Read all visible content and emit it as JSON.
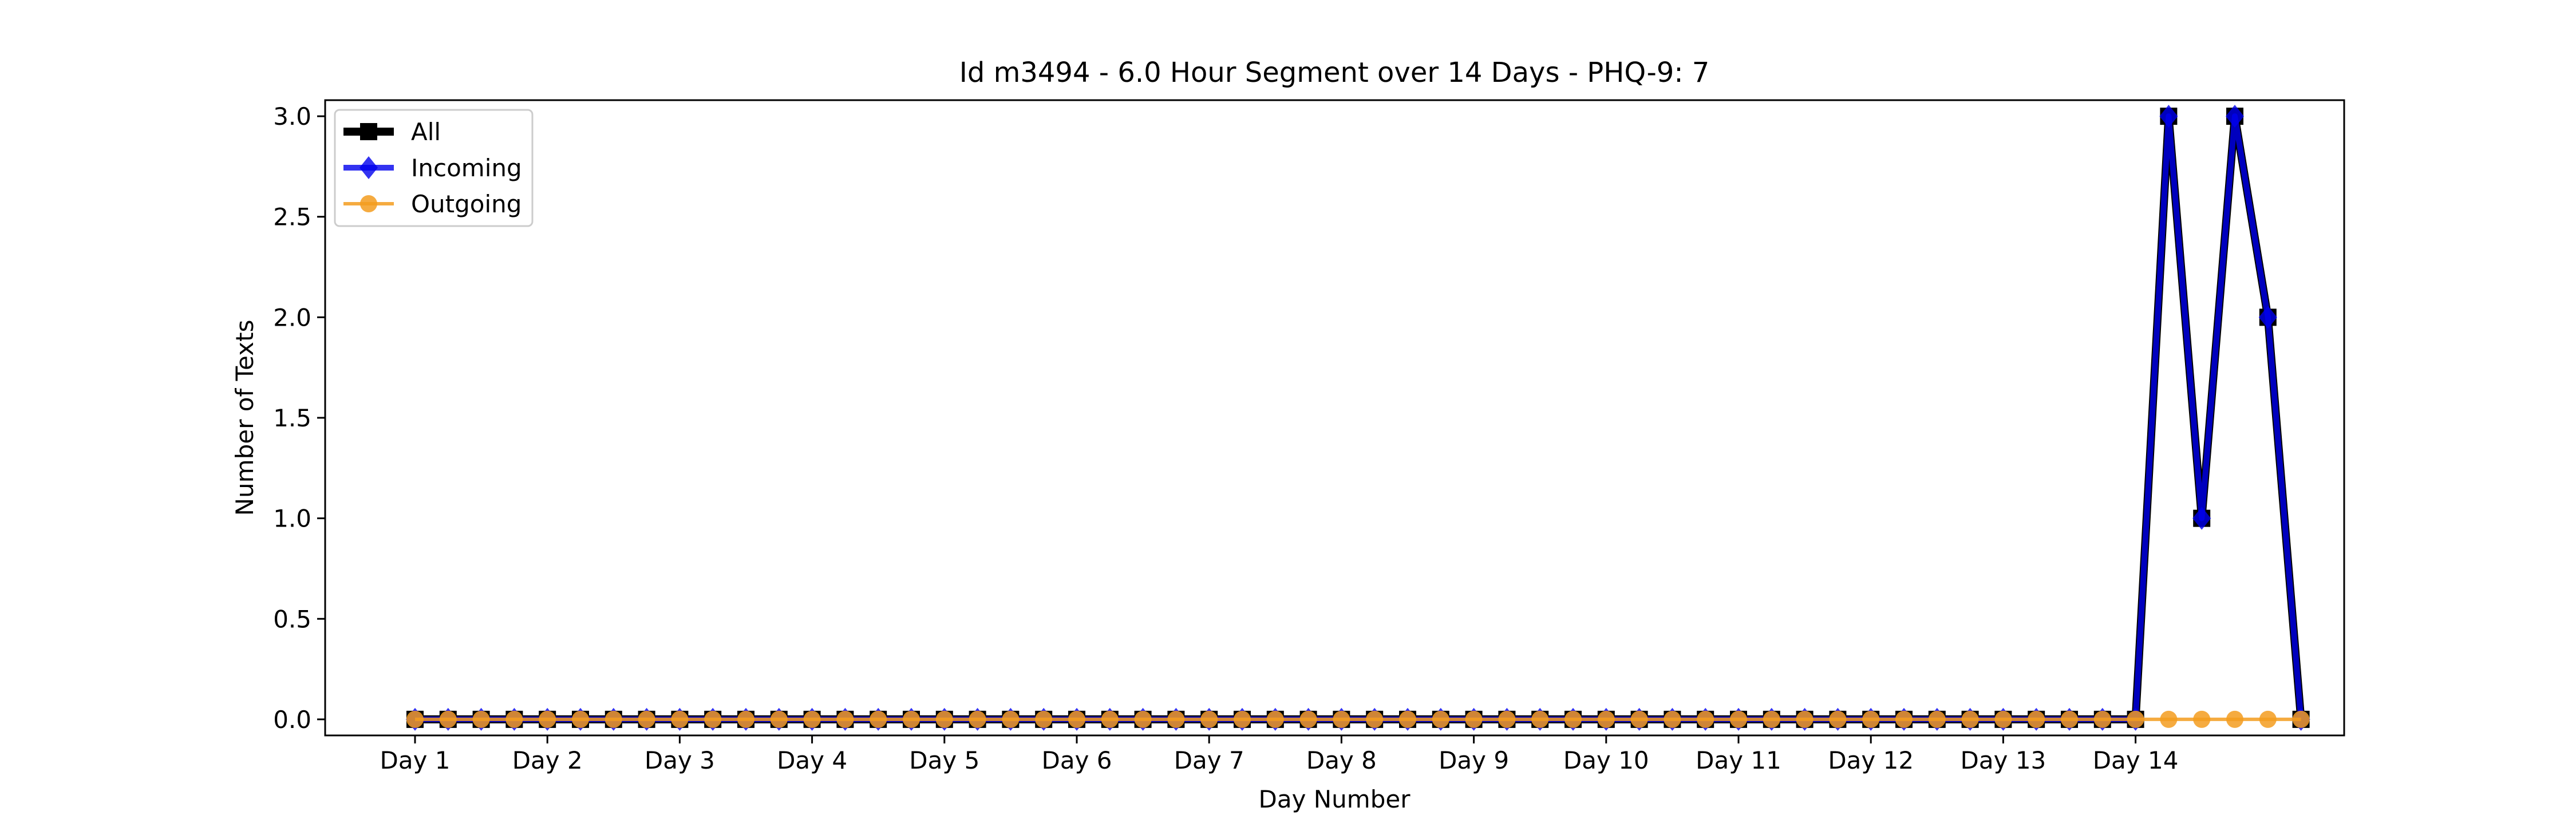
{
  "chart_data": {
    "type": "line",
    "title": "Id m3494 - 6.0 Hour Segment over 14 Days - PHQ-9: 7",
    "xlabel": "Day Number",
    "ylabel": "Number of Texts",
    "ylim": [
      -0.08,
      3.08
    ],
    "yticks": [
      0.0,
      0.5,
      1.0,
      1.5,
      2.0,
      2.5,
      3.0
    ],
    "ytick_labels": [
      "0.0",
      "0.5",
      "1.0",
      "1.5",
      "2.0",
      "2.5",
      "3.0"
    ],
    "xtick_labels": [
      "Day 1",
      "Day 2",
      "Day 3",
      "Day 4",
      "Day 5",
      "Day 6",
      "Day 7",
      "Day 8",
      "Day 9",
      "Day 10",
      "Day 11",
      "Day 12",
      "Day 13",
      "Day 14"
    ],
    "segments_per_day": 4,
    "grid": false,
    "legend_position": "top-left",
    "series": [
      {
        "name": "All",
        "color": "#000000",
        "marker": "square",
        "values": [
          0,
          0,
          0,
          0,
          0,
          0,
          0,
          0,
          0,
          0,
          0,
          0,
          0,
          0,
          0,
          0,
          0,
          0,
          0,
          0,
          0,
          0,
          0,
          0,
          0,
          0,
          0,
          0,
          0,
          0,
          0,
          0,
          0,
          0,
          0,
          0,
          0,
          0,
          0,
          0,
          0,
          0,
          0,
          0,
          0,
          0,
          0,
          0,
          0,
          0,
          0,
          0,
          0,
          3,
          1,
          3,
          2,
          0
        ]
      },
      {
        "name": "Incoming",
        "color": "#0000ee",
        "marker": "diamond",
        "values": [
          0,
          0,
          0,
          0,
          0,
          0,
          0,
          0,
          0,
          0,
          0,
          0,
          0,
          0,
          0,
          0,
          0,
          0,
          0,
          0,
          0,
          0,
          0,
          0,
          0,
          0,
          0,
          0,
          0,
          0,
          0,
          0,
          0,
          0,
          0,
          0,
          0,
          0,
          0,
          0,
          0,
          0,
          0,
          0,
          0,
          0,
          0,
          0,
          0,
          0,
          0,
          0,
          0,
          3,
          1,
          3,
          2,
          0
        ]
      },
      {
        "name": "Outgoing",
        "color": "#f39c1f",
        "marker": "circle",
        "values": [
          0,
          0,
          0,
          0,
          0,
          0,
          0,
          0,
          0,
          0,
          0,
          0,
          0,
          0,
          0,
          0,
          0,
          0,
          0,
          0,
          0,
          0,
          0,
          0,
          0,
          0,
          0,
          0,
          0,
          0,
          0,
          0,
          0,
          0,
          0,
          0,
          0,
          0,
          0,
          0,
          0,
          0,
          0,
          0,
          0,
          0,
          0,
          0,
          0,
          0,
          0,
          0,
          0,
          0,
          0,
          0,
          0,
          0
        ]
      }
    ]
  }
}
